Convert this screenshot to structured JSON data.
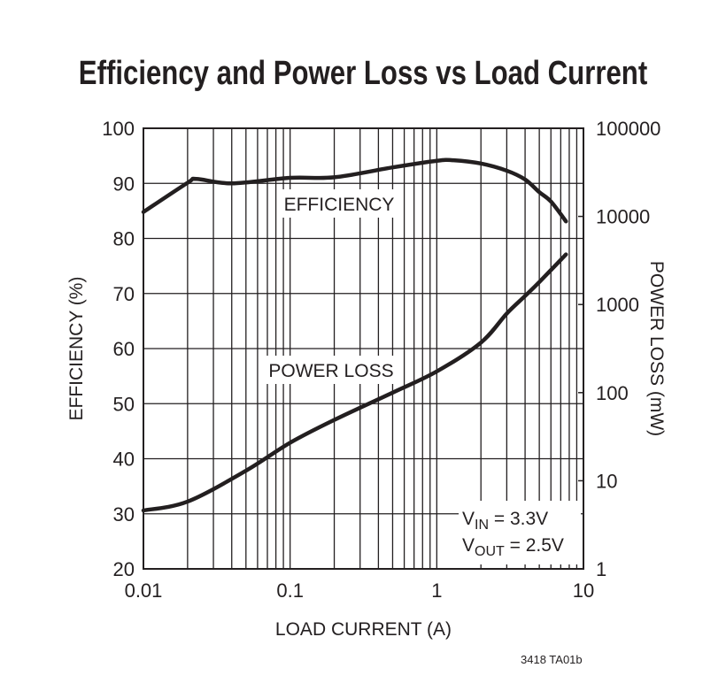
{
  "chart_data": {
    "type": "line",
    "title": "Efficiency and Power Loss vs Load Current",
    "xlabel": "LOAD CURRENT (A)",
    "ylabel": "EFFICIENCY (%)",
    "y2label": "POWER LOSS (mW)",
    "xscale": "log",
    "xlim": [
      0.01,
      10
    ],
    "ylim": [
      20,
      100
    ],
    "y2scale": "log",
    "y2lim": [
      1,
      100000
    ],
    "grid": true,
    "x_ticks": [
      "0.01",
      "0.1",
      "1",
      "10"
    ],
    "y_ticks": [
      "20",
      "30",
      "40",
      "50",
      "60",
      "70",
      "80",
      "90",
      "100"
    ],
    "y2_ticks": [
      "1",
      "10",
      "100",
      "1000",
      "10000",
      "100000"
    ],
    "series": [
      {
        "name": "EFFICIENCY",
        "axis": "left",
        "x": [
          0.01,
          0.02,
          0.023,
          0.04,
          0.1,
          0.2,
          0.5,
          1,
          1.3,
          2,
          3,
          4,
          5,
          6,
          7.6
        ],
        "y": [
          84.8,
          90.1,
          90.8,
          90.0,
          91.0,
          91.1,
          92.9,
          94.1,
          94.2,
          93.6,
          92.3,
          90.7,
          88.4,
          86.7,
          83.1
        ]
      },
      {
        "name": "POWER LOSS",
        "axis": "right",
        "x": [
          0.01,
          0.02,
          0.05,
          0.1,
          0.2,
          0.5,
          1,
          2,
          3,
          4,
          5,
          7.6
        ],
        "y": [
          4.6,
          5.8,
          13,
          27,
          49,
          100,
          174,
          370,
          790,
          1250,
          1800,
          3700
        ]
      }
    ],
    "annotations": {
      "vin": {
        "v": "V",
        "sub": "IN",
        "rest": " = 3.3V"
      },
      "vout": {
        "v": "V",
        "sub": "OUT",
        "rest": " = 2.5V"
      }
    },
    "colors": {
      "line": "#231f20",
      "grid": "#231f20"
    }
  },
  "figure_code": "3418 TA01b"
}
